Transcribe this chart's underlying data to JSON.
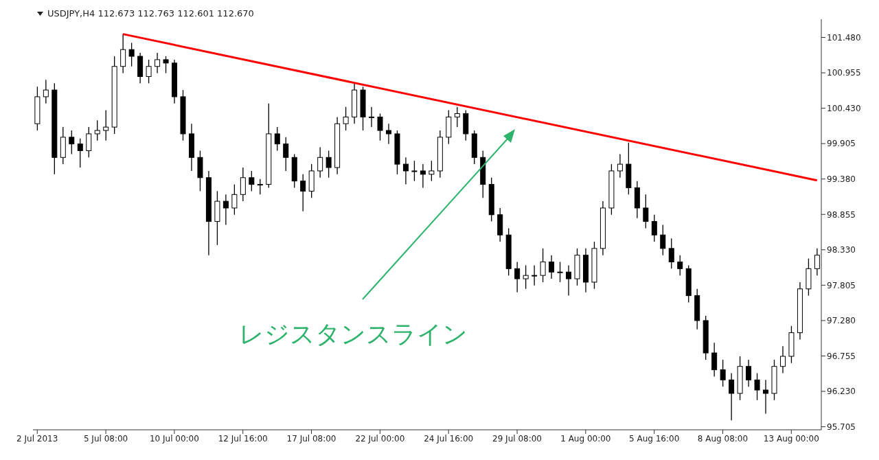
{
  "chart_data": {
    "type": "candlestick",
    "title": "USDJPY,H4  112.673 112.763 112.601 112.670",
    "color": "#000000",
    "categories": [
      "2 Jul 2013",
      null,
      null,
      null,
      null,
      null,
      null,
      null,
      "5 Jul 08:00",
      null,
      null,
      null,
      null,
      null,
      null,
      null,
      "10 Jul 00:00",
      null,
      null,
      null,
      null,
      null,
      null,
      null,
      "12 Jul 16:00",
      null,
      null,
      null,
      null,
      null,
      null,
      null,
      "17 Jul 08:00",
      null,
      null,
      null,
      null,
      null,
      null,
      null,
      "22 Jul 00:00",
      null,
      null,
      null,
      null,
      null,
      null,
      null,
      "24 Jul 16:00",
      null,
      null,
      null,
      null,
      null,
      null,
      null,
      "29 Jul 08:00",
      null,
      null,
      null,
      null,
      null,
      null,
      null,
      "1 Aug 00:00",
      null,
      null,
      null,
      null,
      null,
      null,
      null,
      "5 Aug 16:00",
      null,
      null,
      null,
      null,
      null,
      null,
      null,
      "8 Aug 08:00",
      null,
      null,
      null,
      null,
      null,
      null,
      null,
      "13 Aug 00:00",
      null,
      null,
      null
    ],
    "ohlc": [
      [
        100.2,
        100.75,
        100.1,
        100.6
      ],
      [
        100.6,
        100.85,
        100.5,
        100.7
      ],
      [
        100.7,
        100.8,
        99.45,
        99.7
      ],
      [
        99.7,
        100.15,
        99.6,
        100.0
      ],
      [
        100.0,
        100.1,
        99.75,
        99.9
      ],
      [
        99.9,
        99.98,
        99.55,
        99.8
      ],
      [
        99.8,
        100.15,
        99.7,
        100.05
      ],
      [
        100.05,
        100.25,
        99.95,
        100.1
      ],
      [
        100.1,
        100.4,
        99.95,
        100.15
      ],
      [
        100.15,
        101.2,
        100.05,
        101.05
      ],
      [
        101.05,
        101.53,
        100.95,
        101.3
      ],
      [
        101.3,
        101.4,
        101.05,
        101.2
      ],
      [
        101.2,
        101.25,
        100.8,
        100.9
      ],
      [
        100.9,
        101.15,
        100.8,
        101.05
      ],
      [
        101.05,
        101.25,
        100.95,
        101.15
      ],
      [
        101.15,
        101.2,
        100.95,
        101.1
      ],
      [
        101.1,
        101.15,
        100.5,
        100.6
      ],
      [
        100.6,
        100.7,
        99.95,
        100.05
      ],
      [
        100.05,
        100.2,
        99.5,
        99.7
      ],
      [
        99.7,
        99.8,
        99.2,
        99.4
      ],
      [
        99.4,
        99.5,
        98.25,
        98.75
      ],
      [
        98.75,
        99.2,
        98.4,
        99.05
      ],
      [
        99.05,
        99.15,
        98.7,
        98.95
      ],
      [
        98.95,
        99.3,
        98.85,
        99.15
      ],
      [
        99.15,
        99.55,
        99.05,
        99.4
      ],
      [
        99.4,
        99.5,
        99.2,
        99.3
      ],
      [
        99.3,
        99.38,
        99.15,
        99.3
      ],
      [
        99.3,
        100.5,
        99.25,
        100.05
      ],
      [
        100.05,
        100.15,
        99.8,
        99.9
      ],
      [
        99.9,
        100.0,
        99.5,
        99.7
      ],
      [
        99.7,
        99.75,
        99.25,
        99.35
      ],
      [
        99.35,
        99.45,
        98.9,
        99.2
      ],
      [
        99.2,
        99.6,
        99.1,
        99.5
      ],
      [
        99.5,
        99.85,
        99.4,
        99.7
      ],
      [
        99.7,
        99.8,
        99.4,
        99.55
      ],
      [
        99.55,
        100.3,
        99.45,
        100.2
      ],
      [
        100.2,
        100.45,
        100.1,
        100.3
      ],
      [
        100.3,
        100.8,
        100.2,
        100.7
      ],
      [
        100.7,
        100.75,
        100.1,
        100.3
      ],
      [
        100.3,
        100.45,
        100.15,
        100.3
      ],
      [
        100.3,
        100.35,
        99.95,
        100.1
      ],
      [
        100.1,
        100.2,
        99.9,
        100.05
      ],
      [
        100.05,
        100.1,
        99.45,
        99.6
      ],
      [
        99.6,
        99.7,
        99.3,
        99.5
      ],
      [
        99.5,
        99.65,
        99.35,
        99.5
      ],
      [
        99.5,
        99.6,
        99.25,
        99.45
      ],
      [
        99.45,
        99.65,
        99.35,
        99.5
      ],
      [
        99.5,
        100.1,
        99.4,
        100.0
      ],
      [
        100.0,
        100.4,
        99.9,
        100.3
      ],
      [
        100.3,
        100.45,
        100.15,
        100.35
      ],
      [
        100.35,
        100.4,
        99.95,
        100.05
      ],
      [
        100.05,
        100.1,
        99.6,
        99.7
      ],
      [
        99.7,
        99.8,
        99.1,
        99.3
      ],
      [
        99.3,
        99.4,
        98.75,
        98.85
      ],
      [
        98.85,
        98.95,
        98.45,
        98.55
      ],
      [
        98.55,
        98.65,
        97.95,
        98.05
      ],
      [
        98.05,
        98.15,
        97.7,
        97.9
      ],
      [
        97.9,
        98.1,
        97.75,
        97.95
      ],
      [
        97.95,
        98.1,
        97.8,
        97.95
      ],
      [
        97.95,
        98.35,
        97.85,
        98.15
      ],
      [
        98.15,
        98.25,
        97.9,
        98.0
      ],
      [
        98.0,
        98.15,
        97.85,
        98.0
      ],
      [
        98.0,
        98.1,
        97.65,
        97.9
      ],
      [
        97.9,
        98.35,
        97.8,
        98.25
      ],
      [
        98.25,
        98.35,
        97.7,
        97.85
      ],
      [
        97.85,
        98.45,
        97.75,
        98.35
      ],
      [
        98.35,
        99.05,
        98.25,
        98.95
      ],
      [
        98.95,
        99.6,
        98.85,
        99.5
      ],
      [
        99.5,
        99.75,
        99.4,
        99.6
      ],
      [
        99.6,
        99.92,
        99.15,
        99.25
      ],
      [
        99.25,
        99.35,
        98.8,
        98.95
      ],
      [
        98.95,
        99.15,
        98.65,
        98.75
      ],
      [
        98.75,
        98.85,
        98.45,
        98.55
      ],
      [
        98.55,
        98.7,
        98.25,
        98.35
      ],
      [
        98.35,
        98.5,
        98.05,
        98.15
      ],
      [
        98.15,
        98.25,
        97.95,
        98.05
      ],
      [
        98.05,
        98.1,
        97.55,
        97.65
      ],
      [
        97.65,
        97.75,
        97.15,
        97.28
      ],
      [
        97.28,
        97.35,
        96.7,
        96.8
      ],
      [
        96.8,
        96.95,
        96.45,
        96.55
      ],
      [
        96.55,
        96.7,
        96.3,
        96.4
      ],
      [
        96.4,
        96.5,
        95.8,
        96.2
      ],
      [
        96.2,
        96.75,
        96.1,
        96.6
      ],
      [
        96.6,
        96.7,
        96.3,
        96.4
      ],
      [
        96.4,
        96.5,
        96.1,
        96.25
      ],
      [
        96.25,
        96.4,
        95.9,
        96.2
      ],
      [
        96.2,
        96.7,
        96.1,
        96.6
      ],
      [
        96.6,
        96.9,
        96.5,
        96.75
      ],
      [
        96.75,
        97.2,
        96.65,
        97.1
      ],
      [
        97.1,
        97.85,
        97.0,
        97.75
      ],
      [
        97.75,
        98.2,
        97.65,
        98.05
      ],
      [
        98.05,
        98.35,
        97.95,
        98.25
      ]
    ],
    "series": [
      {
        "type": "line",
        "color": "#ff0000",
        "values": [
          null,
          null,
          null,
          null,
          null,
          null,
          null,
          null,
          null,
          null,
          101.53,
          null,
          null,
          null,
          null,
          null,
          null,
          null,
          null,
          null,
          null,
          null,
          null,
          null,
          null,
          null,
          null,
          null,
          null,
          null,
          null,
          null,
          null,
          null,
          null,
          null,
          null,
          null,
          null,
          null,
          null,
          null,
          null,
          null,
          null,
          null,
          null,
          null,
          null,
          null,
          null,
          null,
          null,
          null,
          null,
          null,
          null,
          null,
          null,
          null,
          null,
          null,
          null,
          null,
          null,
          null,
          null,
          null,
          null,
          null,
          null,
          null,
          null,
          null,
          null,
          null,
          null,
          null,
          null,
          null,
          null,
          null,
          null,
          null,
          null,
          null,
          null,
          null,
          null,
          null,
          null,
          99.36
        ]
      }
    ],
    "ylim": [
      95.66,
      101.75
    ],
    "yticks": [
      {
        "value": 95.705,
        "label": "95.705"
      },
      {
        "value": 96.23,
        "label": "96.230"
      },
      {
        "value": 96.755,
        "label": "96.755"
      },
      {
        "value": 97.28,
        "label": "97.280"
      },
      {
        "value": 97.805,
        "label": "97.805"
      },
      {
        "value": 98.33,
        "label": "98.330"
      },
      {
        "value": 98.855,
        "label": "98.855"
      },
      {
        "value": 99.38,
        "label": "99.380"
      },
      {
        "value": 99.905,
        "label": "99.905"
      },
      {
        "value": 100.43,
        "label": "100.430"
      },
      {
        "value": 100.955,
        "label": "100.955"
      },
      {
        "value": 101.48,
        "label": "101.480"
      }
    ],
    "annotations": [
      "レジスタンスライン"
    ]
  }
}
